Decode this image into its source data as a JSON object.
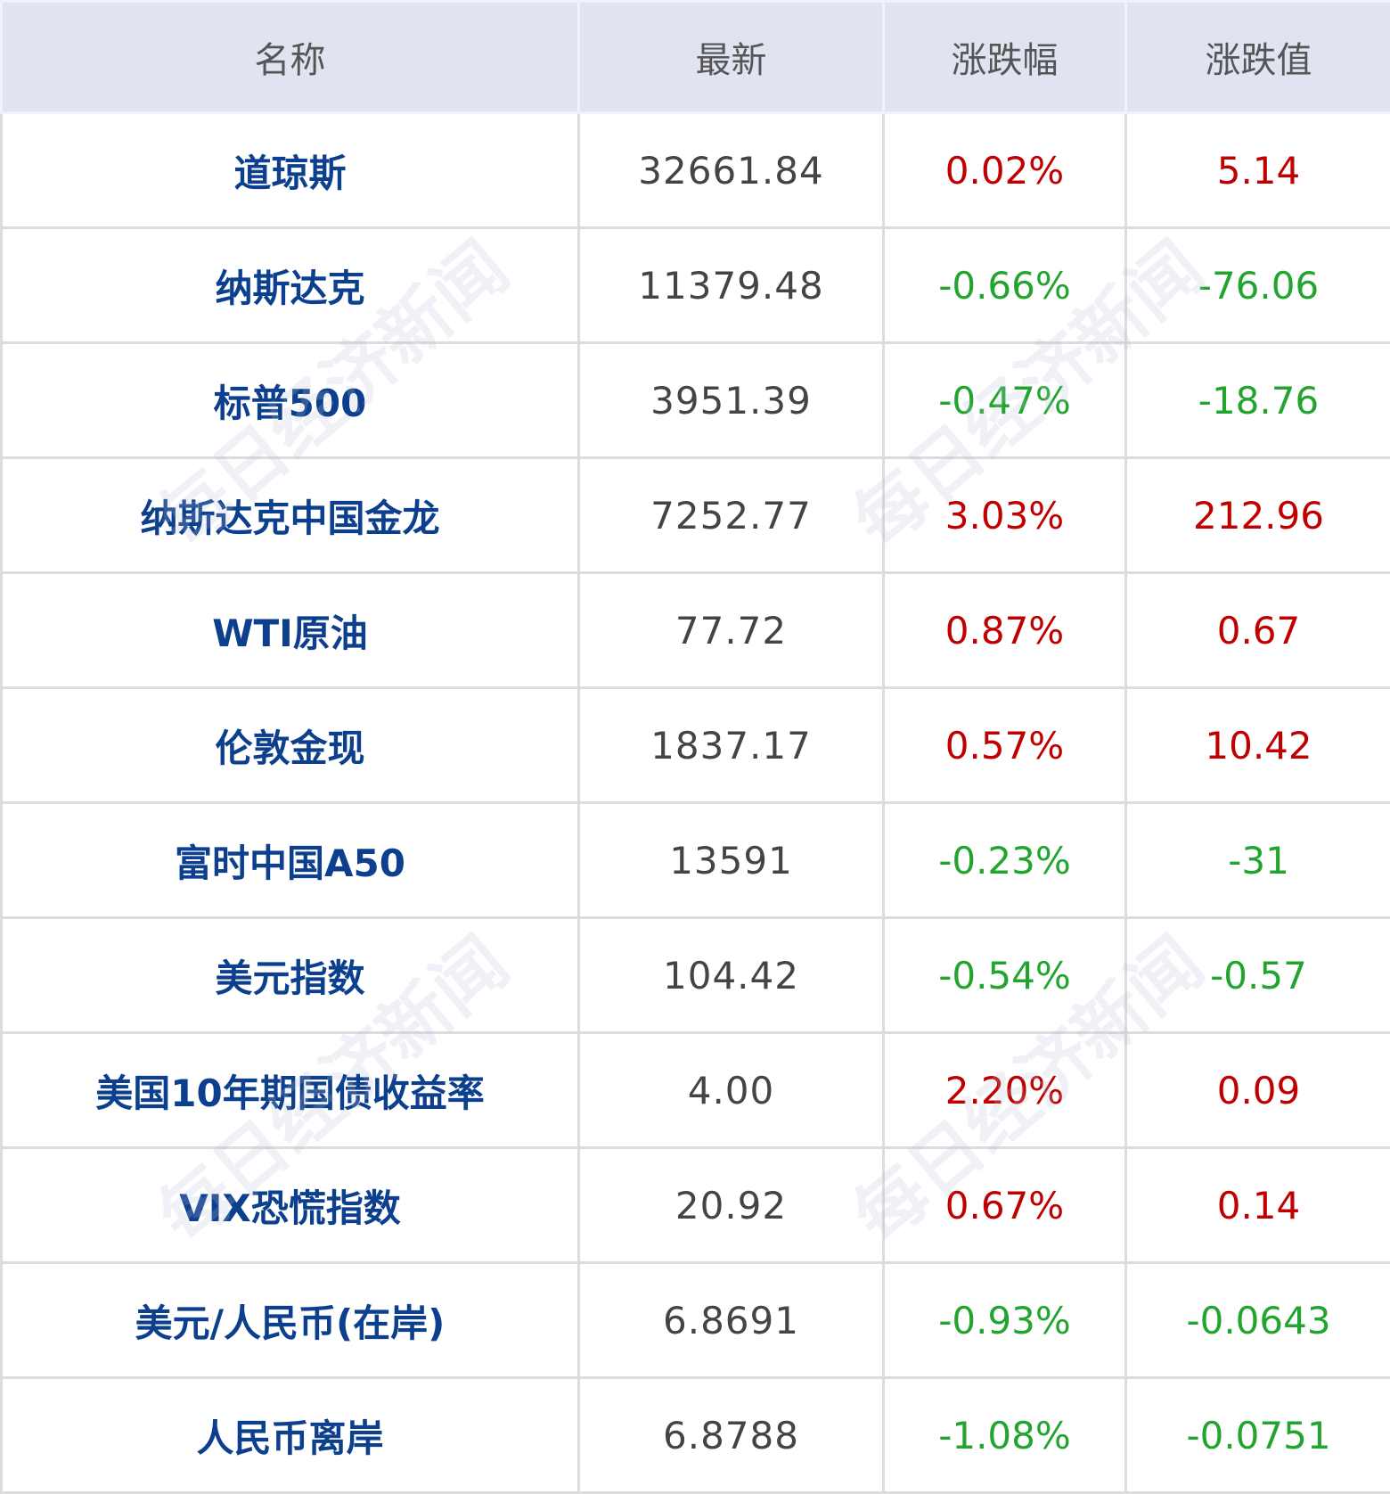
{
  "columns": [
    "名称",
    "最新",
    "涨跌幅",
    "涨跌值"
  ],
  "colors": {
    "name": "#0c3f8e",
    "up": "#c00000",
    "down": "#22a52e",
    "header_bg": "#dfe4f0"
  },
  "watermark": "每日经济新闻",
  "rows": [
    {
      "name": "道琼斯",
      "last": "32661.84",
      "pct": "0.02%",
      "chg": "5.14",
      "dir": "up"
    },
    {
      "name": "纳斯达克",
      "last": "11379.48",
      "pct": "-0.66%",
      "chg": "-76.06",
      "dir": "down"
    },
    {
      "name": "标普500",
      "last": "3951.39",
      "pct": "-0.47%",
      "chg": "-18.76",
      "dir": "down"
    },
    {
      "name": "纳斯达克中国金龙",
      "last": "7252.77",
      "pct": "3.03%",
      "chg": "212.96",
      "dir": "up"
    },
    {
      "name": "WTI原油",
      "last": "77.72",
      "pct": "0.87%",
      "chg": "0.67",
      "dir": "up"
    },
    {
      "name": "伦敦金现",
      "last": "1837.17",
      "pct": "0.57%",
      "chg": "10.42",
      "dir": "up"
    },
    {
      "name": "富时中国A50",
      "last": "13591",
      "pct": "-0.23%",
      "chg": "-31",
      "dir": "down"
    },
    {
      "name": "美元指数",
      "last": "104.42",
      "pct": "-0.54%",
      "chg": "-0.57",
      "dir": "down"
    },
    {
      "name": "美国10年期国债收益率",
      "last": "4.00",
      "pct": "2.20%",
      "chg": "0.09",
      "dir": "up"
    },
    {
      "name": "VIX恐慌指数",
      "last": "20.92",
      "pct": "0.67%",
      "chg": "0.14",
      "dir": "up"
    },
    {
      "name": "美元/人民币(在岸)",
      "last": "6.8691",
      "pct": "-0.93%",
      "chg": "-0.0643",
      "dir": "down"
    },
    {
      "name": "人民币离岸",
      "last": "6.8788",
      "pct": "-1.08%",
      "chg": "-0.0751",
      "dir": "down"
    }
  ]
}
